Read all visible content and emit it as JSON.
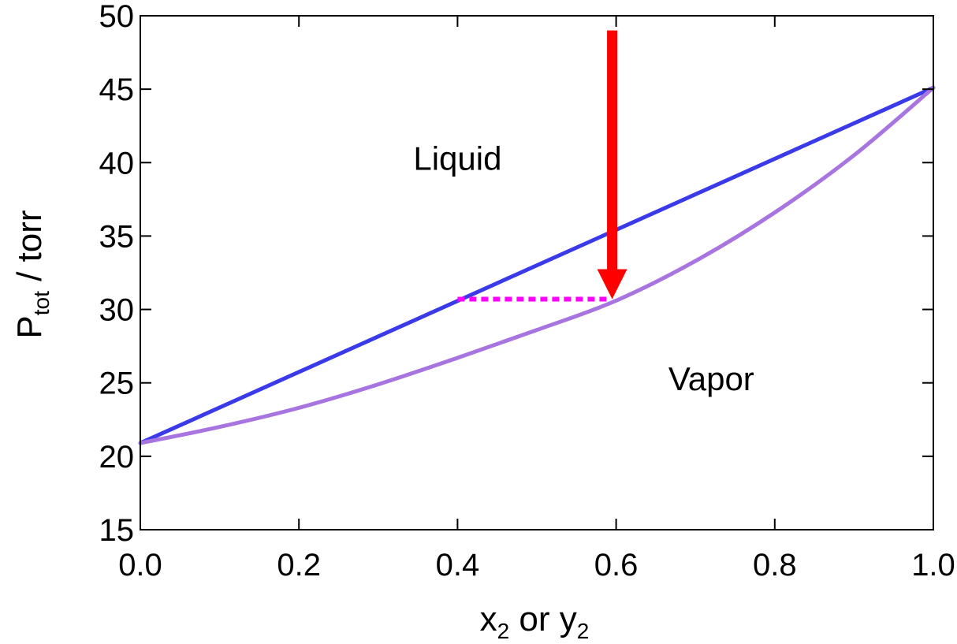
{
  "chart_data": {
    "type": "line",
    "title": "",
    "xlabel": {
      "main": "x",
      "sub": "2",
      "mid": " or y",
      "sub2": "2"
    },
    "ylabel": {
      "main": "P",
      "sub": "tot",
      "rest": " / torr"
    },
    "xlim": [
      0.0,
      1.0
    ],
    "ylim": [
      15,
      50
    ],
    "xticks": [
      0.0,
      0.2,
      0.4,
      0.6,
      0.8,
      1.0
    ],
    "xtick_labels": [
      "0.0",
      "0.2",
      "0.4",
      "0.6",
      "0.8",
      "1.0"
    ],
    "yticks": [
      15,
      20,
      25,
      30,
      35,
      40,
      45,
      50
    ],
    "ytick_labels": [
      "15",
      "20",
      "25",
      "30",
      "35",
      "40",
      "45",
      "50"
    ],
    "grid": false,
    "colors": {
      "liquid_line": "#3a3ae8",
      "vapor_line": "#a874e0",
      "tie_line": "#ff00ff",
      "arrow": "#ff0000"
    },
    "series": [
      {
        "x": [
          0.0,
          1.0
        ],
        "y": [
          20.9,
          45.1
        ],
        "style": "solid"
      },
      {
        "x": [
          0.0,
          0.1,
          0.2,
          0.3,
          0.4,
          0.5,
          0.6,
          0.7,
          0.8,
          0.9,
          1.0
        ],
        "y": [
          20.9,
          22.0,
          23.3,
          24.9,
          26.7,
          28.6,
          30.6,
          33.3,
          36.6,
          40.5,
          45.1
        ],
        "style": "solid"
      }
    ],
    "tie_line": {
      "x": [
        0.4,
        0.59
      ],
      "y": [
        30.7,
        30.7
      ],
      "style": "dotted"
    },
    "arrow": {
      "x": 0.595,
      "y_start": 49.0,
      "y_end": 30.7
    },
    "annotations": [
      {
        "text": "Liquid",
        "x": 0.4,
        "y": 39.5
      },
      {
        "text": "Vapor",
        "x": 0.72,
        "y": 24.5
      }
    ]
  }
}
